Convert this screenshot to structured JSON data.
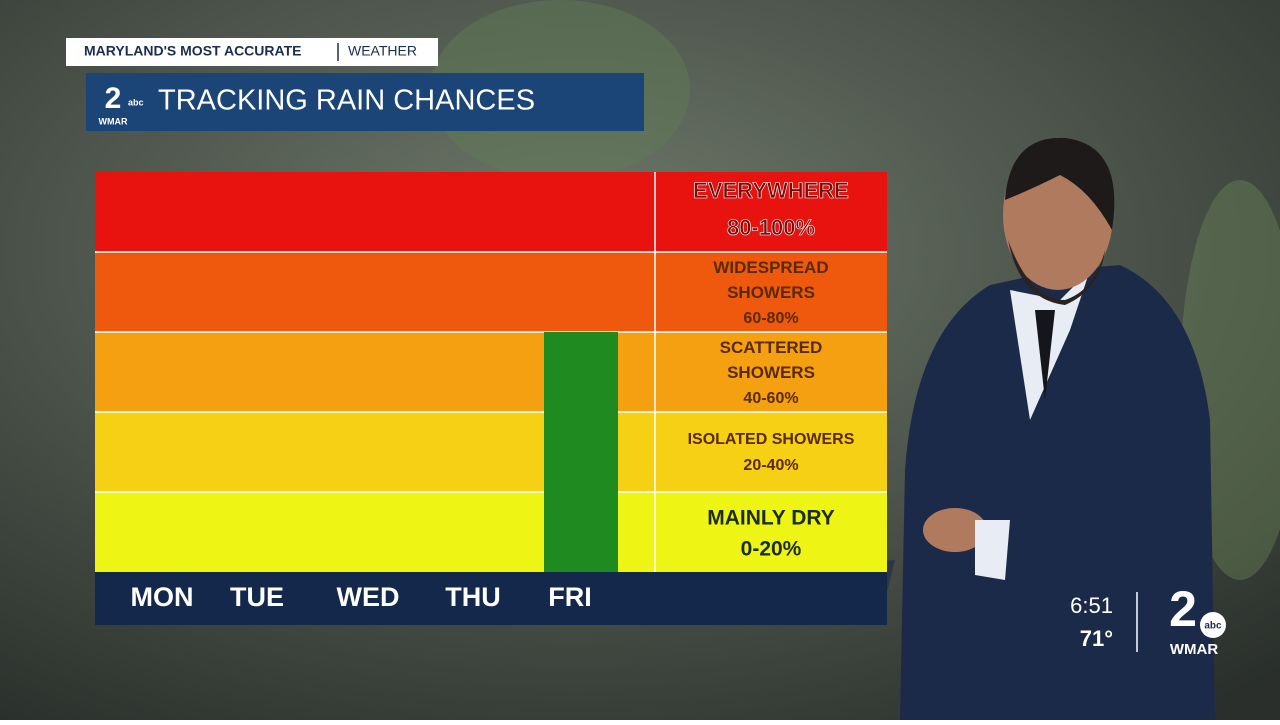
{
  "header": {
    "tagline": "MARYLAND'S MOST ACCURATE",
    "section": "WEATHER",
    "title": "TRACKING RAIN CHANCES",
    "logo_number": "2",
    "logo_network": "abc",
    "logo_station": "WMAR"
  },
  "bug": {
    "time": "6:51",
    "temperature": "71°",
    "logo_number": "2",
    "logo_network": "abc",
    "logo_station": "WMAR"
  },
  "chart_data": {
    "type": "bar",
    "categories": [
      "MON",
      "TUE",
      "WED",
      "THU",
      "FRI"
    ],
    "values": [
      0,
      0,
      0,
      0,
      60
    ],
    "color": "#1f8a1f",
    "ylim": [
      0,
      100
    ],
    "bands": [
      {
        "label": "MAINLY DRY",
        "range": "0-20%",
        "color": "#eef514"
      },
      {
        "label": "ISOLATED SHOWERS",
        "range": "20-40%",
        "color": "#f6d014"
      },
      {
        "label": "SCATTERED SHOWERS",
        "range": "40-60%",
        "color": "#f4a010"
      },
      {
        "label": "WIDESPREAD SHOWERS",
        "range": "60-80%",
        "color": "#ef590d"
      },
      {
        "label": "EVERYWHERE",
        "range": "80-100%",
        "color": "#e8120f"
      }
    ]
  }
}
